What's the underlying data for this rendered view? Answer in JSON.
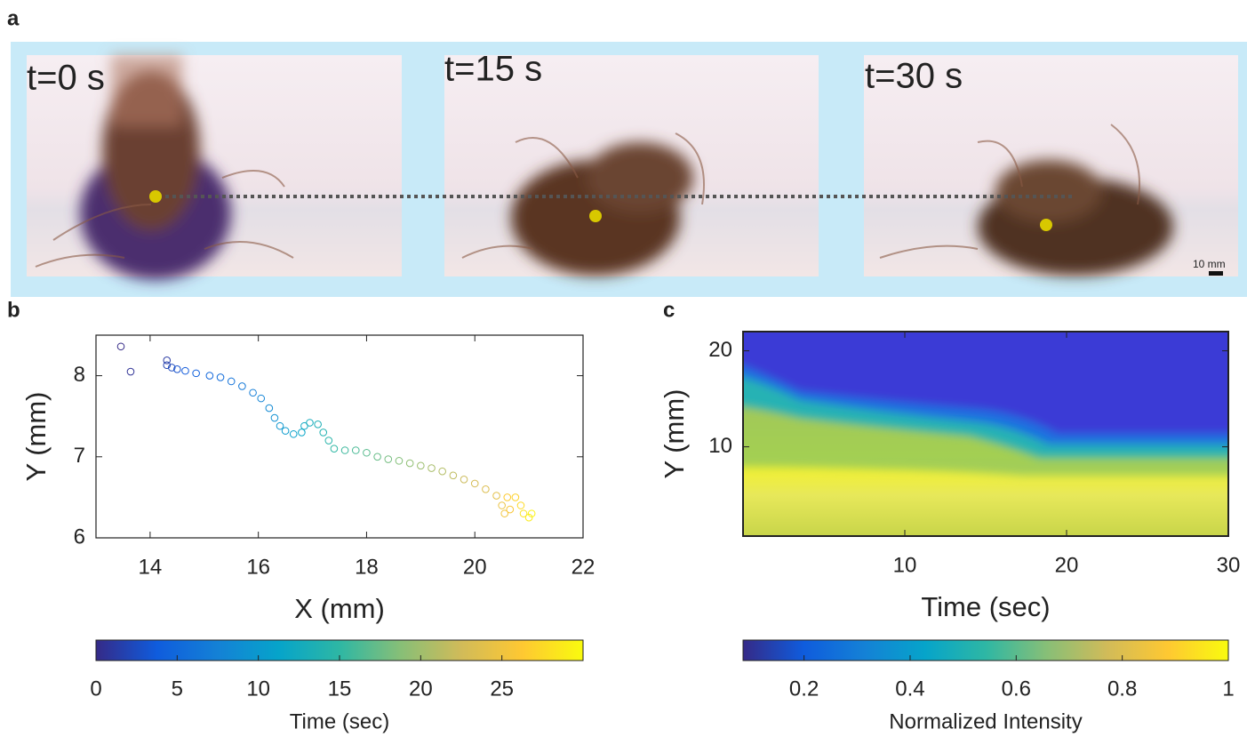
{
  "panels": {
    "a": "a",
    "b": "b",
    "c": "c"
  },
  "frames": {
    "labels": [
      "t=0 s",
      "t=15 s",
      "t=30 s"
    ],
    "scale_bar": "10 mm"
  },
  "colormap": [
    "#352a87",
    "#0f5cdd",
    "#1481d6",
    "#06a4ca",
    "#2eb7a4",
    "#87bf77",
    "#d1bb59",
    "#fec832",
    "#f9fb0e"
  ],
  "chart_data": [
    {
      "type": "scatter",
      "xlabel": "X (mm)",
      "ylabel": "Y (mm)",
      "xlim": [
        13,
        22
      ],
      "ylim": [
        6,
        8.5
      ],
      "xticks": [
        14,
        16,
        18,
        20,
        22
      ],
      "yticks": [
        6,
        7,
        8
      ],
      "x": [
        13.46,
        13.64,
        14.31,
        14.31,
        14.4,
        14.5,
        14.65,
        14.85,
        15.1,
        15.3,
        15.5,
        15.7,
        15.9,
        16.05,
        16.2,
        16.3,
        16.4,
        16.5,
        16.65,
        16.8,
        16.85,
        16.95,
        17.1,
        17.2,
        17.3,
        17.4,
        17.6,
        17.8,
        18.0,
        18.2,
        18.4,
        18.6,
        18.8,
        19.0,
        19.2,
        19.4,
        19.6,
        19.8,
        20.0,
        20.2,
        20.4,
        20.5,
        20.55,
        20.65,
        20.6,
        20.75,
        20.85,
        20.9,
        21.0,
        21.05
      ],
      "y": [
        8.36,
        8.05,
        8.19,
        8.13,
        8.1,
        8.08,
        8.06,
        8.03,
        8.0,
        7.98,
        7.93,
        7.87,
        7.79,
        7.72,
        7.6,
        7.48,
        7.38,
        7.32,
        7.28,
        7.3,
        7.38,
        7.42,
        7.4,
        7.3,
        7.2,
        7.1,
        7.08,
        7.08,
        7.05,
        7.0,
        6.97,
        6.95,
        6.92,
        6.89,
        6.86,
        6.82,
        6.77,
        6.72,
        6.67,
        6.6,
        6.52,
        6.4,
        6.3,
        6.35,
        6.5,
        6.5,
        6.4,
        6.3,
        6.25,
        6.3
      ],
      "time": [
        0,
        0.6,
        1.2,
        1.8,
        2.4,
        3,
        3.6,
        4.2,
        4.8,
        5.4,
        6,
        6.6,
        7.2,
        7.8,
        8.4,
        9,
        9.6,
        10.2,
        10.8,
        11.4,
        12,
        12.6,
        13.2,
        13.8,
        14.4,
        15,
        15.6,
        16.2,
        16.8,
        17.4,
        18,
        18.6,
        19.2,
        19.8,
        20.4,
        21,
        21.6,
        22.2,
        22.8,
        23.4,
        24,
        24.6,
        25.2,
        25.8,
        26.4,
        27,
        27.6,
        28.2,
        28.8,
        29.4
      ],
      "colorbar": {
        "label": "Time (sec)",
        "lim": [
          0,
          30
        ],
        "ticks": [
          0,
          5,
          10,
          15,
          20,
          25
        ]
      }
    },
    {
      "type": "heatmap",
      "xlabel": "Time (sec)",
      "ylabel": "Y (mm)",
      "xlim": [
        0,
        30
      ],
      "ylim": [
        0.7,
        22
      ],
      "xticks": [
        10,
        20,
        30
      ],
      "yticks": [
        10,
        20
      ],
      "colorbar": {
        "label": "Normalized Intensity",
        "lim": [
          0.085,
          1
        ],
        "ticks": [
          0.2,
          0.4,
          0.6,
          0.8,
          1
        ]
      }
    }
  ]
}
